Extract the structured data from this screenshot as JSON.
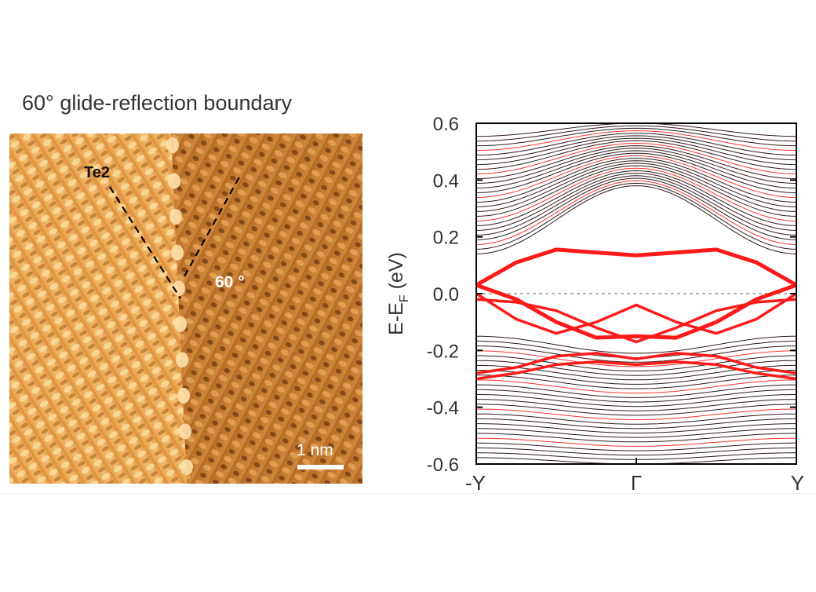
{
  "stm_panel": {
    "title": "60° glide-reflection boundary",
    "te_label": "Te2",
    "angle_label": "60 °",
    "scalebar_label": "1 nm"
  },
  "colors": {
    "surface_states": "#ff1a1a",
    "bulk_bands": "#1a0000",
    "fermi_line": "#9a9a9a",
    "stm_light": "#f6c77e",
    "stm_dark": "#5a2a08"
  },
  "chart_data": {
    "type": "line",
    "title": "",
    "xlabel": "",
    "ylabel": "E-E",
    "ylabel_sub": "F",
    "ylabel_unit": " (eV)",
    "ylim": [
      -0.6,
      0.6
    ],
    "yticks": [
      0.6,
      0.4,
      0.2,
      0.0,
      -0.2,
      -0.4,
      -0.6
    ],
    "ytick_labels": [
      "0.6",
      "0.4",
      "0.2",
      "0.0",
      "-0.2",
      "-0.4",
      "-0.6"
    ],
    "xlim": [
      -1,
      1
    ],
    "xticks": [
      -1,
      0,
      1
    ],
    "xtick_labels": [
      "-Y",
      "Γ",
      "Y"
    ],
    "fermi_level": 0.0,
    "bulk_conduction": {
      "min_at_gamma": 0.38,
      "min_at_edges": 0.14,
      "top": 0.6,
      "bands": 26
    },
    "bulk_valence": {
      "max_at_gamma": -0.21,
      "max_at_edges": -0.15,
      "bottom": -0.6,
      "bands": 26
    },
    "series": [
      {
        "x": [
          -1,
          -0.75,
          -0.5,
          -0.25,
          0,
          0.25,
          0.5,
          0.75,
          1
        ],
        "y": [
          0.03,
          0.11,
          0.155,
          0.145,
          0.135,
          0.145,
          0.155,
          0.11,
          0.03
        ]
      },
      {
        "x": [
          -1,
          -0.75,
          -0.5,
          -0.25,
          0,
          0.25,
          0.5,
          0.75,
          1
        ],
        "y": [
          0.03,
          -0.02,
          -0.1,
          -0.155,
          -0.15,
          -0.155,
          -0.1,
          -0.02,
          0.03
        ]
      },
      {
        "x": [
          -1,
          -0.75,
          -0.5,
          -0.25,
          0,
          0.25,
          0.5,
          0.75,
          1
        ],
        "y": [
          -0.02,
          -0.03,
          -0.06,
          -0.12,
          -0.17,
          -0.12,
          -0.06,
          -0.03,
          -0.02
        ]
      },
      {
        "x": [
          -1,
          -0.75,
          -0.5,
          -0.25,
          0,
          0.25,
          0.5,
          0.75,
          1
        ],
        "y": [
          0.0,
          -0.09,
          -0.14,
          -0.1,
          -0.04,
          -0.1,
          -0.14,
          -0.09,
          0.0
        ]
      },
      {
        "x": [
          -1,
          -0.75,
          -0.5,
          -0.25,
          0,
          0.25,
          0.5,
          0.75,
          1
        ],
        "y": [
          -0.28,
          -0.26,
          -0.22,
          -0.21,
          -0.23,
          -0.21,
          -0.22,
          -0.26,
          -0.28
        ]
      },
      {
        "x": [
          -1,
          -0.75,
          -0.5,
          -0.25,
          0,
          0.25,
          0.5,
          0.75,
          1
        ],
        "y": [
          -0.3,
          -0.28,
          -0.25,
          -0.24,
          -0.25,
          -0.24,
          -0.25,
          -0.28,
          -0.3
        ]
      }
    ]
  }
}
